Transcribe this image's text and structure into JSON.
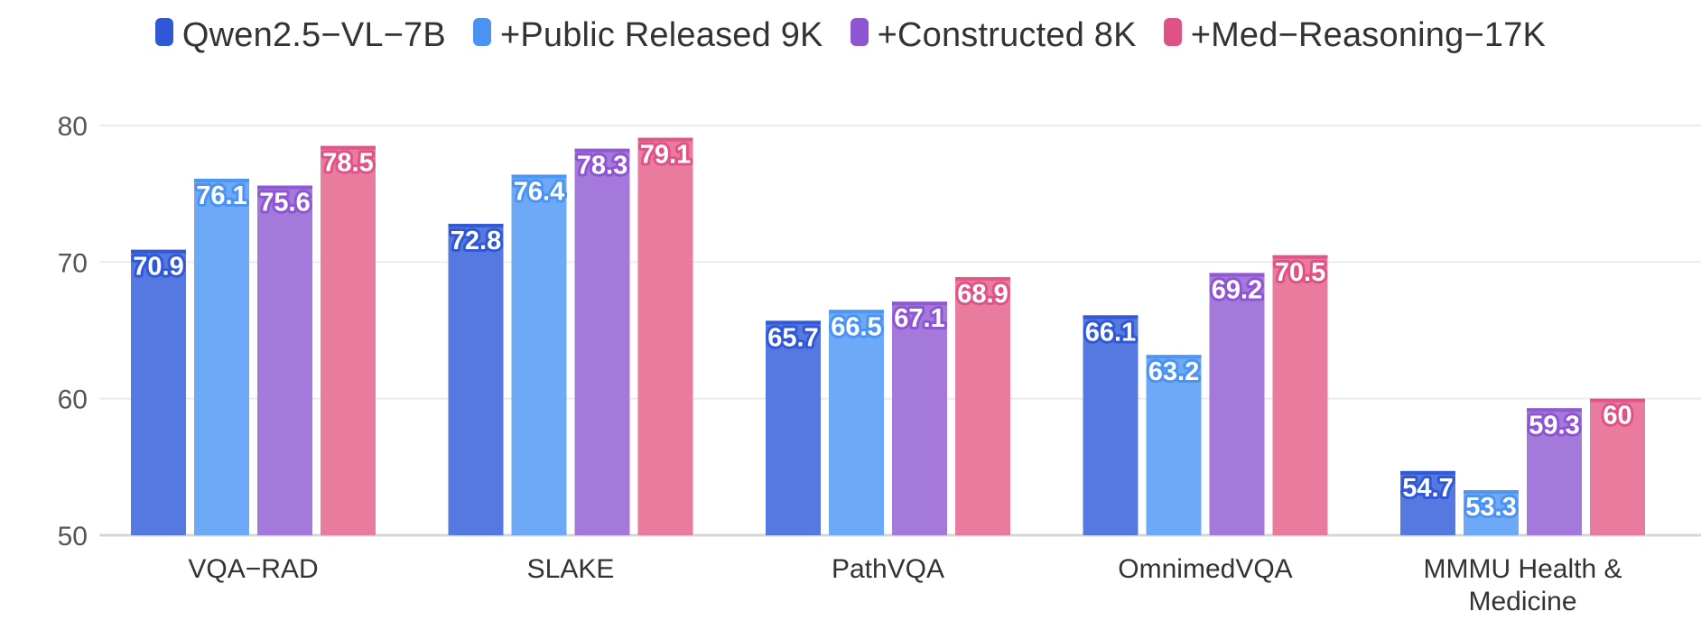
{
  "chart_data": {
    "type": "bar",
    "title": "",
    "xlabel": "",
    "ylabel": "",
    "ylim": [
      50,
      80
    ],
    "yticks": [
      50,
      60,
      70,
      80
    ],
    "grid": true,
    "legend_position": "top-center",
    "categories": [
      [
        "VQA−RAD"
      ],
      [
        "SLAKE"
      ],
      [
        "PathVQA"
      ],
      [
        "OmnimedVQA"
      ],
      [
        "MMMU Health &",
        "Medicine"
      ]
    ],
    "series": [
      {
        "name": "Qwen2.5−VL−7B",
        "color": "#5579e0",
        "label_color": "#2f57d6",
        "values": [
          70.9,
          72.8,
          65.7,
          66.1,
          54.7
        ]
      },
      {
        "name": "+Public Released 9K",
        "color": "#6ea9f7",
        "label_color": "#4a93f2",
        "values": [
          76.1,
          76.4,
          66.5,
          63.2,
          53.3
        ]
      },
      {
        "name": "+Constructed 8K",
        "color": "#a479db",
        "label_color": "#8d55d2",
        "values": [
          75.6,
          78.3,
          67.1,
          69.2,
          59.3
        ]
      },
      {
        "name": "+Med−Reasoning−17K",
        "color": "#e97b9f",
        "label_color": "#df5384",
        "values": [
          78.5,
          79.1,
          68.9,
          70.5,
          60
        ]
      }
    ]
  }
}
